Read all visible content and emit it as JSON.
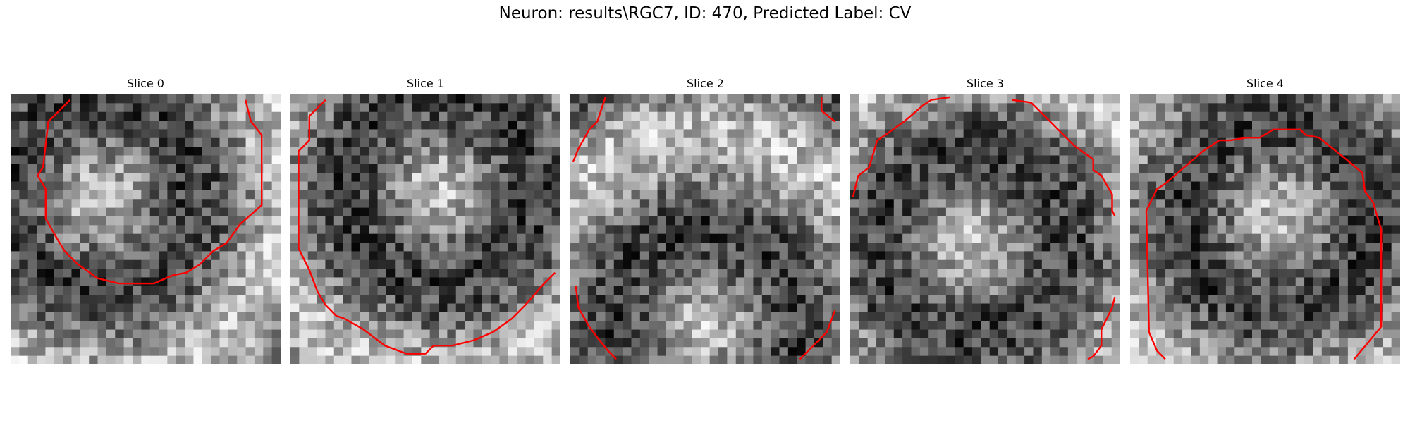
{
  "figure": {
    "title": "Neuron: results\\RGC7, ID: 470, Predicted Label: CV"
  },
  "panels": [
    {
      "title": "Slice 0",
      "seed": 11,
      "bright_center": [
        0.33,
        0.38
      ],
      "contour": "roundish"
    },
    {
      "title": "Slice 1",
      "seed": 23,
      "bright_center": [
        0.55,
        0.35
      ],
      "contour": "u-shape"
    },
    {
      "title": "Slice 2",
      "seed": 37,
      "bright_center": [
        0.5,
        0.85
      ],
      "contour": "corners"
    },
    {
      "title": "Slice 3",
      "seed": 41,
      "bright_center": [
        0.45,
        0.55
      ],
      "contour": "arch"
    },
    {
      "title": "Slice 4",
      "seed": 53,
      "bright_center": [
        0.55,
        0.45
      ],
      "contour": "dome"
    }
  ],
  "colors": {
    "contour": "#ff0000",
    "background": "#ffffff"
  }
}
